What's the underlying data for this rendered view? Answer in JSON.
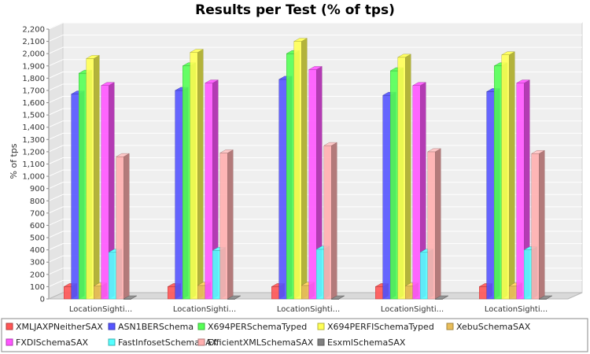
{
  "chart_data": {
    "type": "bar",
    "title": "Results per Test (% of tps)",
    "ylabel": "% of tps",
    "xlabel": "",
    "ylim": [
      0,
      2200
    ],
    "ytick_step": 100,
    "grid": true,
    "legend_position": "bottom",
    "categories": [
      "LocationSighti...",
      "LocationSighti...",
      "LocationSighti...",
      "LocationSighti...",
      "LocationSighti..."
    ],
    "series": [
      {
        "name": "XMLJAXPNeitherSAX",
        "color": "#ff5555",
        "values": [
          100,
          100,
          100,
          100,
          100
        ]
      },
      {
        "name": "ASN1BERSchema",
        "color": "#5555ff",
        "values": [
          1670,
          1700,
          1790,
          1660,
          1690
        ]
      },
      {
        "name": "X694PERSchemaTyped",
        "color": "#55ff55",
        "values": [
          1840,
          1900,
          2000,
          1860,
          1900
        ]
      },
      {
        "name": "X694PERFISchemaTyped",
        "color": "#ffff55",
        "values": [
          1960,
          2010,
          2100,
          1970,
          1990
        ]
      },
      {
        "name": "XebuSchemaSAX",
        "color": "#e8bd5a",
        "values": [
          105,
          110,
          110,
          105,
          105
        ]
      },
      {
        "name": "FXDISchemaSAX",
        "color": "#ff55ff",
        "values": [
          1740,
          1760,
          1870,
          1740,
          1760
        ]
      },
      {
        "name": "FastInfosetSchemaSAX",
        "color": "#55ffff",
        "values": [
          380,
          395,
          405,
          380,
          400
        ]
      },
      {
        "name": "EfficientXMLSchemaSAX",
        "color": "#ffafaf",
        "values": [
          1160,
          1190,
          1250,
          1200,
          1185
        ]
      },
      {
        "name": "EsxmlSchemaSAX",
        "color": "#808080",
        "values": [
          0,
          0,
          0,
          0,
          0
        ]
      }
    ]
  }
}
